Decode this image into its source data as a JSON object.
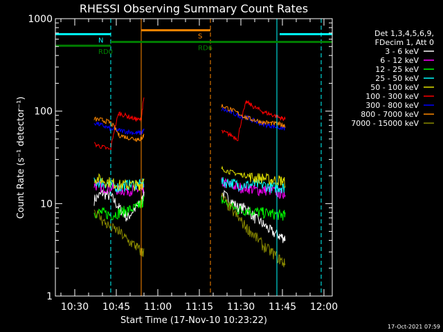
{
  "chart_data": {
    "type": "line",
    "title": "RHESSI Observing Summary Count Rates",
    "xlabel": "Start Time (17-Nov-10 10:23:22)",
    "ylabel": "Count Rate (s⁻¹ detector⁻¹)",
    "yscale": "log",
    "ylim": [
      1,
      1000
    ],
    "xlim": [
      "10:23",
      "12:03"
    ],
    "x_ticks": [
      "10:30",
      "10:45",
      "11:00",
      "11:15",
      "11:30",
      "11:45",
      "12:00"
    ],
    "y_ticks": [
      "1",
      "10",
      "100",
      "1000"
    ],
    "grid": false,
    "legend_position": "right",
    "legend_header": [
      "Det 1,3,4,5,6,9,",
      "FDecim 1, Att 0"
    ],
    "date_stamp": "17-Oct-2021 07:59",
    "series": [
      {
        "name": "3 - 6 keV",
        "color": "#ffffff",
        "x": [
          "10:37",
          "10:40",
          "10:43",
          "10:46",
          "10:49",
          "10:52",
          "10:54",
          "10:55",
          "11:23",
          "11:26",
          "11:29",
          "11:32",
          "11:35",
          "11:38",
          "11:41",
          "11:44",
          "11:46"
        ],
        "y": [
          11,
          13,
          12,
          9,
          7,
          9,
          10,
          13,
          13,
          11,
          9,
          9,
          7,
          6,
          5,
          4.5,
          4.2
        ]
      },
      {
        "name": "6 - 12 keV",
        "color": "#ff00ff",
        "x": [
          "10:37",
          "10:40",
          "10:43",
          "10:46",
          "10:49",
          "10:52",
          "10:54",
          "10:55",
          "11:23",
          "11:26",
          "11:29",
          "11:32",
          "11:35",
          "11:38",
          "11:41",
          "11:44",
          "11:46"
        ],
        "y": [
          16,
          15,
          15,
          14,
          14,
          14,
          14,
          15,
          17,
          16,
          15,
          15,
          14,
          14,
          14,
          13,
          13
        ]
      },
      {
        "name": "12 - 25 keV",
        "color": "#00ff00",
        "x": [
          "10:37",
          "10:40",
          "10:43",
          "10:46",
          "10:49",
          "10:52",
          "10:54",
          "10:55",
          "11:23",
          "11:26",
          "11:29",
          "11:32",
          "11:35",
          "11:38",
          "11:41",
          "11:44",
          "11:46"
        ],
        "y": [
          8,
          8,
          7.5,
          8,
          8.5,
          9,
          10,
          11,
          11,
          9.5,
          8.5,
          8.5,
          8.2,
          8,
          7.8,
          7.6,
          7.5
        ]
      },
      {
        "name": "25 - 50 keV",
        "color": "#00ffff",
        "x": [
          "10:37",
          "10:40",
          "10:43",
          "10:46",
          "10:49",
          "10:52",
          "10:54",
          "10:55",
          "11:23",
          "11:26",
          "11:29",
          "11:32",
          "11:35",
          "11:38",
          "11:41",
          "11:44",
          "11:46"
        ],
        "y": [
          17,
          17,
          16,
          15,
          16,
          16,
          16,
          17,
          17,
          17,
          16,
          16,
          16,
          16,
          15,
          15,
          15
        ]
      },
      {
        "name": "50 - 100 keV",
        "color": "#e0e000",
        "x": [
          "10:37",
          "10:40",
          "10:43",
          "10:46",
          "10:49",
          "10:52",
          "10:54",
          "10:55",
          "11:23",
          "11:26",
          "11:29",
          "11:32",
          "11:35",
          "11:38",
          "11:41",
          "11:44",
          "11:46"
        ],
        "y": [
          19,
          18,
          17,
          16,
          16,
          16,
          16,
          17,
          24,
          22,
          21,
          20,
          19,
          19,
          18,
          18,
          17
        ]
      },
      {
        "name": "100 - 300 keV",
        "color": "#ff0000",
        "x": [
          "10:37",
          "10:40",
          "10:43",
          "10:46",
          "10:49",
          "10:52",
          "10:54",
          "10:55",
          "11:23",
          "11:26",
          "11:29",
          "11:32",
          "11:35",
          "11:38",
          "11:41",
          "11:44",
          "11:46"
        ],
        "y": [
          44,
          41,
          38,
          95,
          88,
          82,
          80,
          140,
          60,
          56,
          50,
          125,
          110,
          98,
          92,
          85,
          82
        ]
      },
      {
        "name": "300 - 800 keV",
        "color": "#0000ff",
        "x": [
          "10:37",
          "10:40",
          "10:43",
          "10:46",
          "10:49",
          "10:52",
          "10:54",
          "10:55",
          "11:23",
          "11:26",
          "11:29",
          "11:32",
          "11:35",
          "11:38",
          "11:41",
          "11:44",
          "11:46"
        ],
        "y": [
          75,
          70,
          64,
          62,
          60,
          58,
          58,
          62,
          105,
          98,
          90,
          85,
          78,
          72,
          69,
          66,
          65
        ]
      },
      {
        "name": "800 - 7000 keV",
        "color": "#ff8800",
        "x": [
          "10:37",
          "10:40",
          "10:43",
          "10:46",
          "10:49",
          "10:52",
          "10:54",
          "10:55",
          "11:23",
          "11:26",
          "11:29",
          "11:32",
          "11:35",
          "11:38",
          "11:41",
          "11:44",
          "11:46"
        ],
        "y": [
          82,
          80,
          75,
          55,
          52,
          50,
          50,
          55,
          115,
          105,
          95,
          85,
          80,
          76,
          74,
          72,
          70
        ]
      },
      {
        "name": "7000 - 15000 keV",
        "color": "#8a8a00",
        "x": [
          "10:37",
          "10:40",
          "10:43",
          "10:46",
          "10:49",
          "10:52",
          "10:54",
          "10:55",
          "11:23",
          "11:26",
          "11:29",
          "11:32",
          "11:35",
          "11:38",
          "11:41",
          "11:44",
          "11:46"
        ],
        "y": [
          8.5,
          6.5,
          5.5,
          5,
          4,
          3.5,
          3,
          3,
          12,
          9,
          7,
          5.5,
          4.5,
          3.5,
          3,
          2.5,
          2.2
        ]
      }
    ],
    "flag_bars": [
      {
        "label": "N",
        "color": "#00ffff",
        "y": 680,
        "segments": [
          [
            "10:23",
            "10:43"
          ],
          [
            "11:44",
            "12:03"
          ]
        ]
      },
      {
        "label": "S",
        "color": "#ff8800",
        "y": 750,
        "segments": [
          [
            "10:54",
            "11:19"
          ]
        ]
      },
      {
        "label": "RD0",
        "color": "#008000",
        "y": 510,
        "segments": [
          [
            "10:23",
            "10:43"
          ]
        ]
      },
      {
        "label": "RD6",
        "color": "#008000",
        "y": 560,
        "segments": [
          [
            "10:43",
            "11:19"
          ],
          [
            "11:19",
            "11:31"
          ],
          [
            "11:31",
            "12:03"
          ]
        ]
      }
    ],
    "vertical_markers": [
      {
        "x": "10:23",
        "color": "#00ffff",
        "style": "solid"
      },
      {
        "x": "10:43",
        "color": "#00ffff",
        "style": "dashed"
      },
      {
        "x": "10:54",
        "color": "#ff8800",
        "style": "solid"
      },
      {
        "x": "11:19",
        "color": "#ff8800",
        "style": "dashed"
      },
      {
        "x": "11:43",
        "color": "#00ffff",
        "style": "solid"
      },
      {
        "x": "11:59",
        "color": "#00ffff",
        "style": "dashed"
      }
    ]
  }
}
